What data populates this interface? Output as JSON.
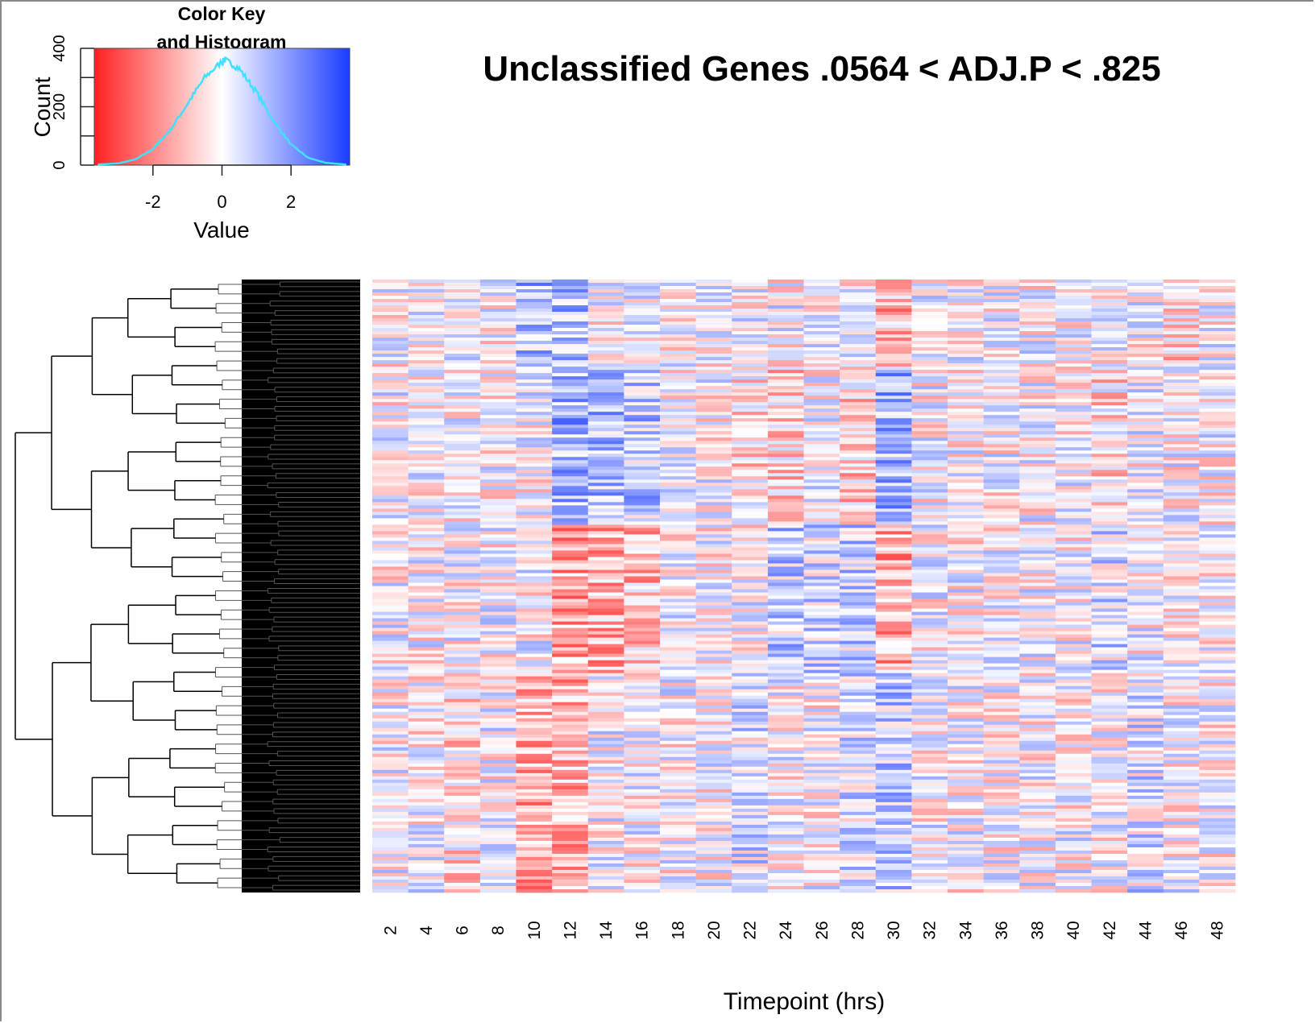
{
  "chart_data": [
    {
      "type": "histogram",
      "title": "Color Key\nand Histogram",
      "xlabel": "Value",
      "ylabel": "Count",
      "x_ticks": [
        "-2",
        "0",
        "2"
      ],
      "y_ticks": [
        "0",
        "200",
        "400"
      ],
      "xlim": [
        -3.7,
        3.7
      ],
      "ylim": [
        0,
        400
      ],
      "colors": {
        "low": "#ff2020",
        "mid": "#ffffff",
        "high": "#1a3cff",
        "curve": "#40e0ff"
      },
      "density": {
        "x": [
          -3.6,
          -3.0,
          -2.5,
          -2.0,
          -1.5,
          -1.0,
          -0.5,
          0.0,
          0.1,
          0.5,
          1.0,
          1.5,
          2.0,
          2.5,
          3.0,
          3.6
        ],
        "y": [
          2,
          6,
          20,
          55,
          120,
          210,
          300,
          355,
          360,
          330,
          250,
          150,
          70,
          25,
          8,
          2
        ]
      }
    },
    {
      "type": "heatmap",
      "title": "Unclassified Genes .0564 < ADJ.P < .825",
      "xlabel": "Timepoint (hrs)",
      "ylabel": "",
      "columns": [
        "2",
        "4",
        "6",
        "8",
        "10",
        "12",
        "14",
        "16",
        "18",
        "20",
        "22",
        "24",
        "26",
        "28",
        "30",
        "32",
        "34",
        "36",
        "38",
        "40",
        "42",
        "44",
        "46",
        "48"
      ],
      "value_range": [
        -3.7,
        3.7
      ],
      "row_dendrogram": true,
      "colors": {
        "low": "#ff2020",
        "mid": "#ffffff",
        "high": "#1a3cff"
      }
    }
  ]
}
